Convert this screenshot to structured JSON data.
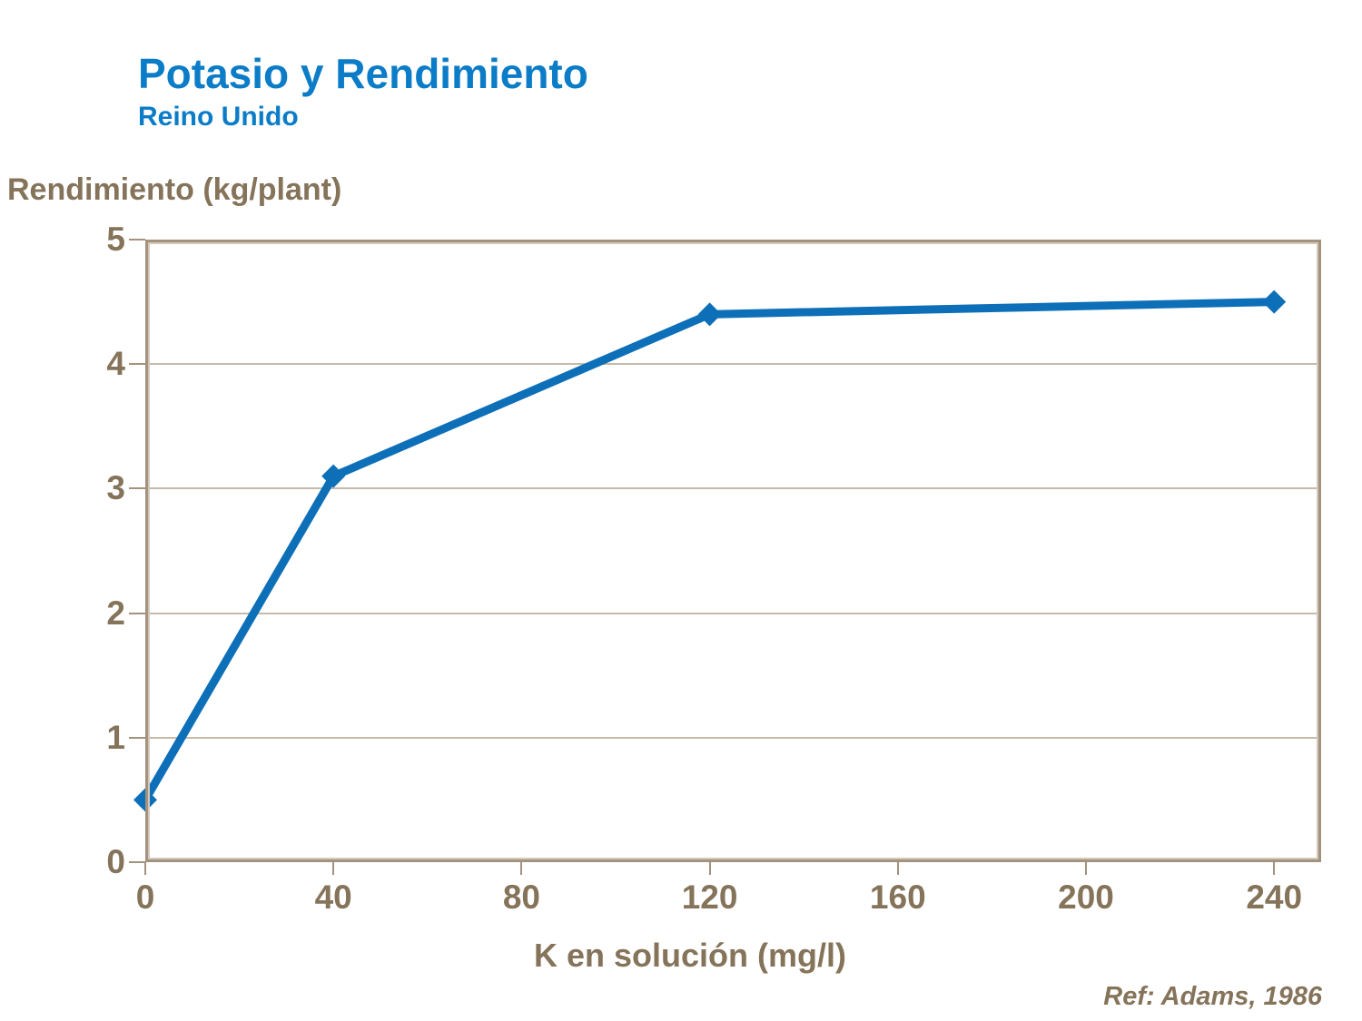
{
  "header": {
    "title": "Potasio y Rendimiento",
    "subtitle": "Reino Unido"
  },
  "footer": {
    "reference": "Ref: Adams, 1986"
  },
  "chart_data": {
    "type": "line",
    "title": "Potasio y Rendimiento",
    "subtitle": "Reino Unido",
    "xlabel": "K en solución (mg/l)",
    "ylabel": "Rendimiento (kg/plant)",
    "x": [
      0,
      40,
      120,
      240
    ],
    "series": [
      {
        "name": "Rendimiento (kg/plant)",
        "values": [
          0.5,
          3.1,
          4.4,
          4.5
        ]
      }
    ],
    "xlim": [
      0,
      250
    ],
    "ylim": [
      0,
      5
    ],
    "x_ticks": [
      0,
      40,
      80,
      120,
      160,
      200,
      240
    ],
    "y_ticks": [
      0,
      1,
      2,
      3,
      4,
      5
    ],
    "grid": "horizontal",
    "legend_position": "none",
    "marker": "diamond",
    "line_width": 9,
    "colors": {
      "line": "#0d6fb8",
      "title_text": "#0b7cc7",
      "axis_text": "#85735a",
      "frame": "#a3927d",
      "gridline": "#c7baa8",
      "background": "#ffffff"
    }
  }
}
